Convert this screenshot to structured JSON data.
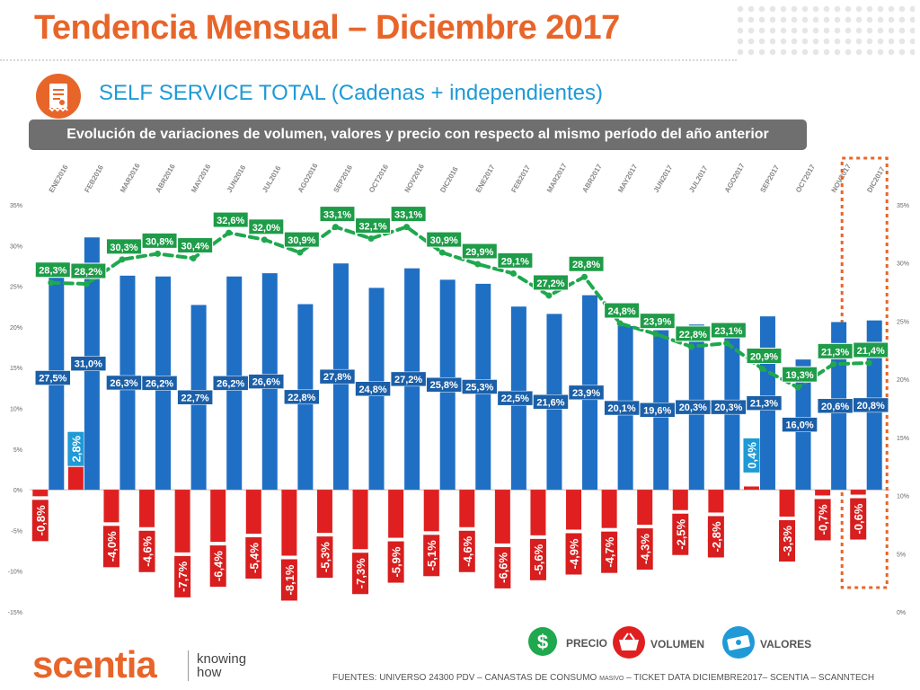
{
  "header": {
    "title": "Tendencia Mensual – Diciembre 2017",
    "subtitle": "SELF SERVICE TOTAL (Cadenas + independientes)",
    "band": "Evolución de variaciones de volumen, valores y precio con respecto al mismo período del año anterior"
  },
  "colors": {
    "accent": "#e8652a",
    "valores": "#1f6fc4",
    "volumen": "#e02020",
    "precio": "#1fa84e",
    "subtitle": "#1f9ad6"
  },
  "legend": {
    "precio": {
      "label": "PRECIO",
      "icon": "dollar-icon"
    },
    "volumen": {
      "label": "VOLUMEN",
      "icon": "basket-icon"
    },
    "valores": {
      "label": "VALORES",
      "icon": "banknote-icon"
    }
  },
  "brand": {
    "name": "scentia",
    "tagline": "knowing how"
  },
  "footer": {
    "sources_pre": "FUENTES: UNIVERSO 24300 PDV – CANASTAS DE CONSUMO ",
    "sources_small": "MASIVO",
    "sources_post": " – TICKET DATA DICIEMBRE2017– SCENTIA – SCANNTECH"
  },
  "chart_data": {
    "type": "bar",
    "categories": [
      "ENE2016",
      "FEB2016",
      "MAR2016",
      "ABR2016",
      "MAY2016",
      "JUN2016",
      "JUL2016",
      "AGO2016",
      "SEP2016",
      "OCT2016",
      "NOV2016",
      "DIC2016",
      "ENE2017",
      "FEB2017",
      "MAR2017",
      "ABR2017",
      "MAY2017",
      "JUN2017",
      "JUL2017",
      "AGO2017",
      "SEP2017",
      "OCT2017",
      "NOV2017",
      "DIC2017"
    ],
    "series": [
      {
        "key": "valores",
        "chart": "bar",
        "axis": "left",
        "values": [
          27.5,
          31.0,
          26.3,
          26.2,
          22.7,
          26.2,
          26.6,
          22.8,
          27.8,
          24.8,
          27.2,
          25.8,
          25.3,
          22.5,
          21.6,
          23.9,
          20.1,
          19.6,
          20.3,
          20.3,
          21.3,
          16.0,
          20.6,
          20.8
        ],
        "labels": [
          "27,5%",
          "31,0%",
          "26,3%",
          "26,2%",
          "22,7%",
          "26,2%",
          "26,6%",
          "22,8%",
          "27,8%",
          "24,8%",
          "27,2%",
          "25,8%",
          "25,3%",
          "22,5%",
          "21,6%",
          "23,9%",
          "20,1%",
          "19,6%",
          "20,3%",
          "20,3%",
          "21,3%",
          "16,0%",
          "20,6%",
          "20,8%"
        ]
      },
      {
        "key": "volumen",
        "chart": "bar",
        "axis": "left",
        "values": [
          -0.8,
          2.8,
          -4.0,
          -4.6,
          -7.7,
          -6.4,
          -5.4,
          -8.1,
          -5.3,
          -7.3,
          -5.9,
          -5.1,
          -4.6,
          -6.6,
          -5.6,
          -4.9,
          -4.7,
          -4.3,
          -2.5,
          -2.8,
          0.4,
          -3.3,
          -0.7,
          -0.6
        ],
        "labels": [
          "-0,8%",
          "2,8%",
          "-4,0%",
          "-4,6%",
          "-7,7%",
          "-6,4%",
          "-5,4%",
          "-8,1%",
          "-5,3%",
          "-7,3%",
          "-5,9%",
          "-5,1%",
          "-4,6%",
          "-6,6%",
          "-5,6%",
          "-4,9%",
          "-4,7%",
          "-4,3%",
          "-2,5%",
          "-2,8%",
          "0,4%",
          "-3,3%",
          "-0,7%",
          "-0,6%"
        ]
      },
      {
        "key": "precio",
        "chart": "line",
        "axis": "right",
        "values": [
          28.3,
          28.2,
          30.3,
          30.8,
          30.4,
          32.6,
          32.0,
          30.9,
          33.1,
          32.1,
          33.1,
          30.9,
          29.9,
          29.1,
          27.2,
          28.8,
          24.8,
          23.9,
          22.8,
          23.1,
          20.9,
          19.3,
          21.3,
          21.4
        ],
        "labels": [
          "28,3%",
          "28,2%",
          "30,3%",
          "30,8%",
          "30,4%",
          "32,6%",
          "32,0%",
          "30,9%",
          "33,1%",
          "32,1%",
          "33,1%",
          "30,9%",
          "29,9%",
          "29,1%",
          "27,2%",
          "28,8%",
          "24,8%",
          "23,9%",
          "22,8%",
          "23,1%",
          "20,9%",
          "19,3%",
          "21,3%",
          "21,4%"
        ]
      }
    ],
    "y_left": {
      "ylim": [
        -15,
        35
      ],
      "ticks": [
        "-15%",
        "-10%",
        "-5%",
        "0%",
        "5%",
        "10%",
        "15%",
        "20%",
        "25%",
        "30%",
        "35%"
      ]
    },
    "y_right": {
      "ylim": [
        0,
        35
      ],
      "ticks": [
        "0%",
        "5%",
        "10%",
        "15%",
        "20%",
        "25%",
        "30%",
        "35%"
      ]
    },
    "highlight_category": "DIC2017",
    "grid": false
  }
}
